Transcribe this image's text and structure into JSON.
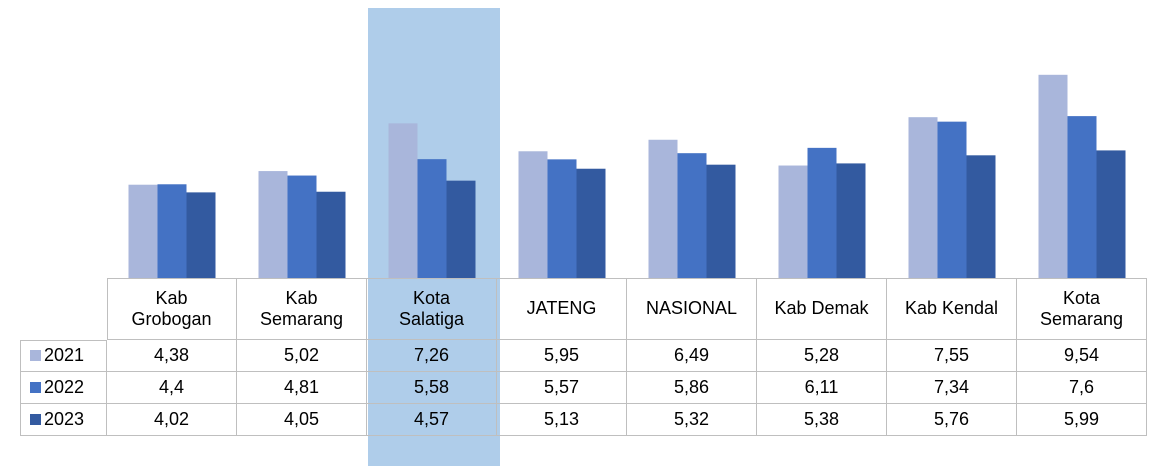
{
  "chart_data": {
    "type": "bar",
    "categories": [
      "Kab Grobogan",
      "Kab Semarang",
      "Kota Salatiga",
      "JATENG",
      "NASIONAL",
      "Kab Demak",
      "Kab Kendal",
      "Kota Semarang"
    ],
    "series": [
      {
        "name": "2021",
        "color": "#a9b6db",
        "values": [
          4.38,
          5.02,
          7.26,
          5.95,
          6.49,
          5.28,
          7.55,
          9.54
        ],
        "value_labels": [
          "4,38",
          "5,02",
          "7,26",
          "5,95",
          "6,49",
          "5,28",
          "7,55",
          "9,54"
        ]
      },
      {
        "name": "2022",
        "color": "#4472c4",
        "values": [
          4.4,
          4.81,
          5.58,
          5.57,
          5.86,
          6.11,
          7.34,
          7.6
        ],
        "value_labels": [
          "4,4",
          "4,81",
          "5,58",
          "5,57",
          "5,86",
          "6,11",
          "7,34",
          "7,6"
        ]
      },
      {
        "name": "2023",
        "color": "#335aa0",
        "values": [
          4.02,
          4.05,
          4.57,
          5.13,
          5.32,
          5.38,
          5.76,
          5.99
        ],
        "value_labels": [
          "4,02",
          "4,05",
          "4,57",
          "5,13",
          "5,32",
          "5,38",
          "5,76",
          "5,99"
        ]
      }
    ],
    "ylim": [
      0,
      10
    ],
    "highlight": "Kota Salatiga",
    "highlight_color": "#afcdea"
  }
}
